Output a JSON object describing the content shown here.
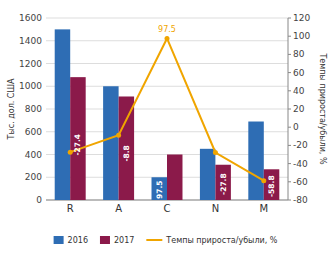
{
  "chart_data": {
    "type": "bar",
    "categories": [
      "R",
      "A",
      "C",
      "N",
      "M"
    ],
    "series": [
      {
        "name": "2016",
        "color": "#2e6db4",
        "values": [
          1500,
          1000,
          200,
          450,
          690
        ]
      },
      {
        "name": "2017",
        "color": "#8b1a4a",
        "values": [
          1080,
          910,
          400,
          310,
          270
        ]
      },
      {
        "name": "Темпы прироста/убыли, %",
        "color": "#f0a500",
        "type": "line",
        "axis": "y2",
        "marker": "circle",
        "values": [
          -27.4,
          -8.8,
          97.5,
          -27.8,
          -58.8
        ],
        "data_labels": true,
        "value_labels": [
          "-27.4",
          "-8.8",
          "97.5",
          "-27.8",
          "-58.8"
        ]
      }
    ],
    "ylabel": "Тыс. дол. США",
    "y2label": "Темпы прироста/убыли, %",
    "ylim": [
      0,
      1600
    ],
    "yticks": [
      0,
      200,
      400,
      600,
      800,
      1000,
      1200,
      1400,
      1600
    ],
    "y2lim": [
      -80,
      120
    ],
    "y2ticks": [
      -80,
      -60,
      -40,
      -20,
      0,
      20,
      40,
      60,
      80,
      100,
      120
    ],
    "grid": true,
    "annotations": [
      {
        "text": "97.5",
        "x": "C",
        "y": 97.5,
        "axis": "y2"
      }
    ]
  }
}
